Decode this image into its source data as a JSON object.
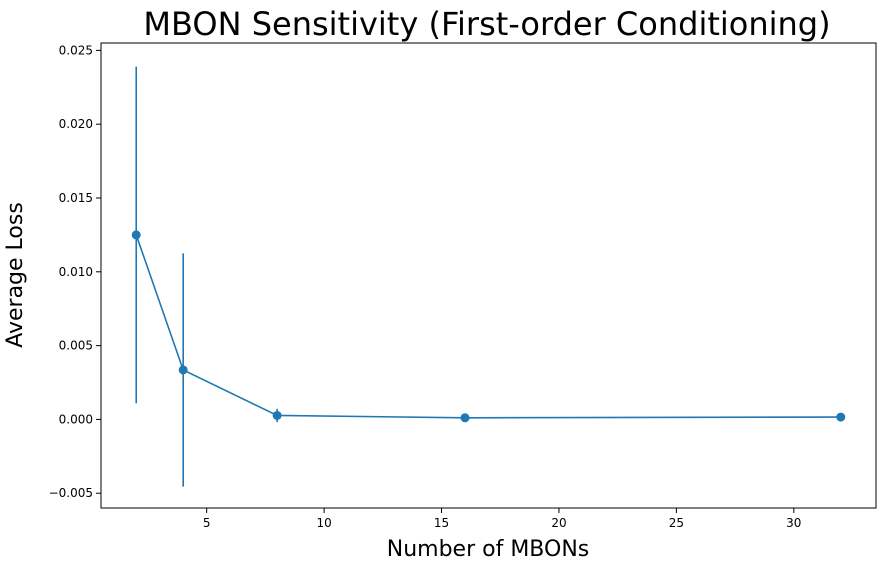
{
  "chart_data": {
    "type": "line",
    "title": "MBON Sensitivity (First-order Conditioning)",
    "xlabel": "Number of MBONs",
    "ylabel": "Average Loss",
    "xlim": [
      0.5,
      33.5
    ],
    "ylim": [
      -0.006,
      0.0255
    ],
    "xticks": [
      5,
      10,
      15,
      20,
      25,
      30
    ],
    "xtick_labels": [
      "5",
      "10",
      "15",
      "20",
      "25",
      "30"
    ],
    "yticks": [
      -0.005,
      0.0,
      0.005,
      0.01,
      0.015,
      0.02,
      0.025
    ],
    "ytick_labels": [
      "−0.005",
      "0.000",
      "0.005",
      "0.010",
      "0.015",
      "0.020",
      "0.025"
    ],
    "grid": false,
    "color": "#1f77b4",
    "series": [
      {
        "x": [
          2,
          4,
          8,
          16,
          32
        ],
        "y": [
          0.0125,
          0.00335,
          0.00027,
          0.00011,
          0.00016
        ],
        "yerr": [
          0.0114,
          0.0079,
          0.00045,
          6e-05,
          6e-05
        ]
      }
    ]
  }
}
